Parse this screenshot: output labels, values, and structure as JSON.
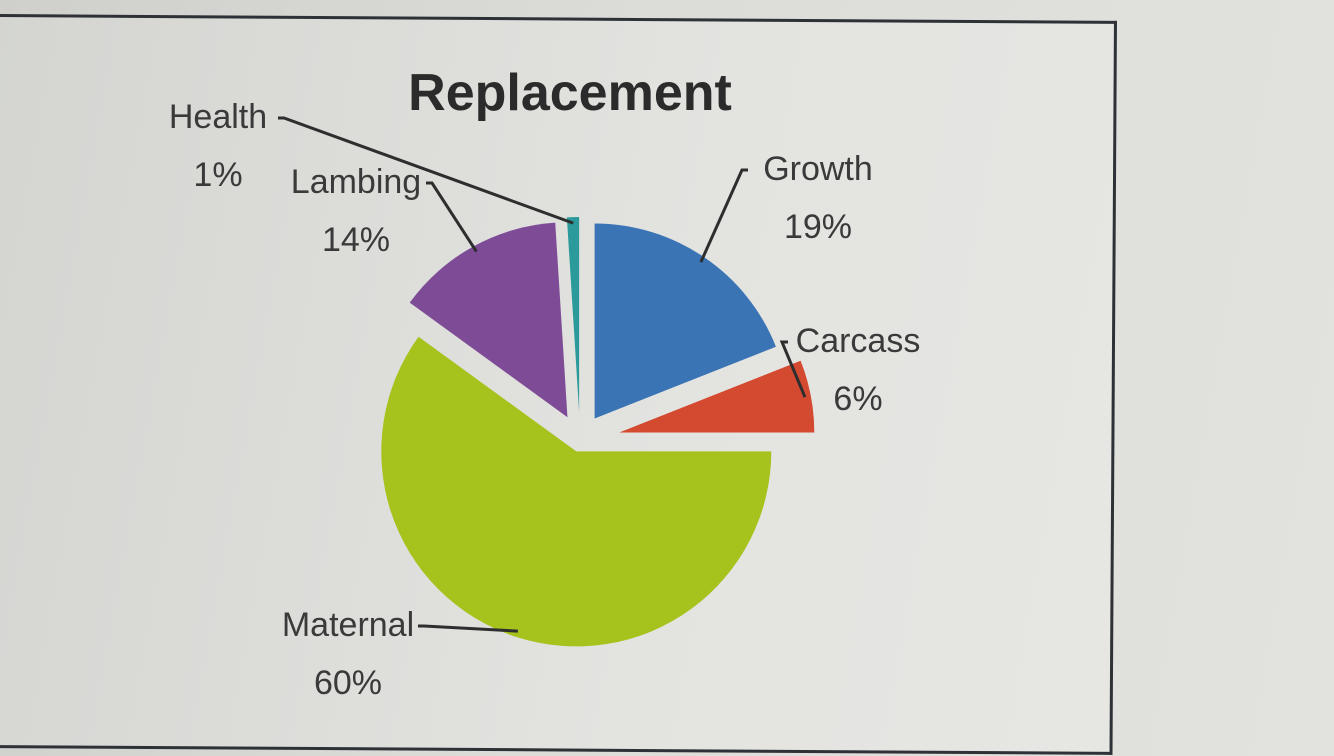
{
  "chart_data": {
    "type": "pie",
    "title": "Replacement",
    "slices": [
      {
        "label": "Growth",
        "value": 19,
        "value_label": "19%",
        "color": "#3a74b4"
      },
      {
        "label": "Carcass",
        "value": 6,
        "value_label": "6%",
        "color": "#d44a30"
      },
      {
        "label": "Maternal",
        "value": 60,
        "value_label": "60%",
        "color": "#a6c21c"
      },
      {
        "label": "Lambing",
        "value": 14,
        "value_label": "14%",
        "color": "#7e4c97"
      },
      {
        "label": "Health",
        "value": 1,
        "value_label": "1%",
        "color": "#2a9a9a"
      }
    ],
    "start_angle_deg": 0,
    "direction": "clockwise",
    "exploded": true,
    "label_placement": "outside with leader lines",
    "legend": "none"
  }
}
